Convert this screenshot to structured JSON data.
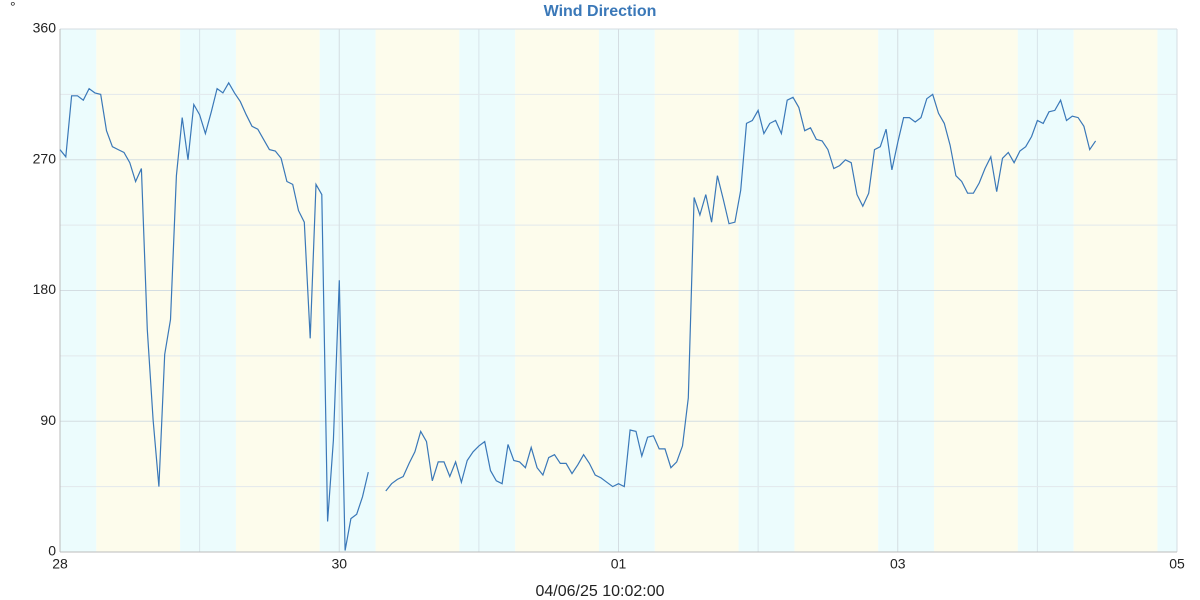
{
  "chart_data": {
    "type": "line",
    "title": "Wind Direction",
    "ylabel": "°",
    "xlabel": "04/06/25 10:02:00",
    "xlim": [
      0,
      192
    ],
    "xticks": [
      {
        "value": 0,
        "label": "28"
      },
      {
        "value": 48,
        "label": "30"
      },
      {
        "value": 96,
        "label": "01"
      },
      {
        "value": 144,
        "label": "03"
      },
      {
        "value": 192,
        "label": "05"
      }
    ],
    "ylim": [
      0,
      360
    ],
    "yticks": [
      0,
      90,
      180,
      270,
      360
    ],
    "grid": true,
    "x": [
      0,
      1,
      2,
      3,
      4,
      5,
      6,
      7,
      8,
      9,
      10,
      11,
      12,
      13,
      14,
      15,
      16,
      17,
      18,
      19,
      20,
      21,
      22,
      23,
      24,
      25,
      26,
      27,
      28,
      29,
      30,
      31,
      32,
      33,
      34,
      35,
      36,
      37,
      38,
      39,
      40,
      41,
      42,
      43,
      44,
      45,
      46,
      47,
      48,
      49,
      50,
      51,
      52,
      53,
      54,
      55,
      56,
      57,
      58,
      59,
      60,
      61,
      62,
      63,
      64,
      65,
      66,
      67,
      68,
      69,
      70,
      71,
      72,
      73,
      74,
      75,
      76,
      77,
      78,
      79,
      80,
      81,
      82,
      83,
      84,
      85,
      86,
      87,
      88,
      89,
      90,
      91,
      92,
      93,
      94,
      95,
      96,
      97,
      98,
      99,
      100,
      101,
      102,
      103,
      104,
      105,
      106,
      107,
      108,
      109,
      110,
      111,
      112,
      113,
      114,
      115,
      116,
      117,
      118,
      119,
      120,
      121,
      122,
      123,
      124,
      125,
      126,
      127,
      128,
      129,
      130,
      131,
      132,
      133,
      134,
      135,
      136,
      137,
      138,
      139,
      140,
      141,
      142,
      143,
      144,
      145,
      146,
      147,
      148,
      149,
      150,
      151,
      152,
      153,
      154,
      155,
      156,
      157,
      158,
      159,
      160,
      161,
      162,
      163,
      164,
      165,
      166,
      167,
      168,
      169,
      170,
      171,
      172,
      173,
      174,
      175,
      176,
      177,
      178
    ],
    "series": [
      {
        "name": "Wind Direction",
        "color": "#3a78b8",
        "values": [
          277,
          272,
          314,
          314,
          311,
          319,
          316,
          315,
          290,
          279,
          277,
          275,
          268,
          255,
          264,
          153,
          91,
          45,
          136,
          160,
          259,
          299,
          270,
          308,
          301,
          288,
          303,
          319,
          316,
          323,
          316,
          310,
          301,
          293,
          291,
          284,
          277,
          276,
          271,
          255,
          253,
          235,
          227,
          147,
          253,
          246,
          21,
          77,
          187,
          1,
          23,
          26,
          38,
          55,
          null,
          null,
          42,
          47,
          50,
          52,
          61,
          69,
          83,
          76,
          49,
          62,
          62,
          52,
          62,
          48,
          63,
          69,
          73,
          76,
          56,
          49,
          47,
          74,
          63,
          62,
          58,
          72,
          58,
          53,
          65,
          67,
          61,
          61,
          54,
          60,
          67,
          61,
          53,
          51,
          48,
          45,
          47,
          45,
          84,
          83,
          66,
          79,
          80,
          71,
          71,
          58,
          62,
          73,
          106,
          244,
          232,
          246,
          227,
          259,
          243,
          226,
          227,
          249,
          295,
          297,
          304,
          288,
          295,
          297,
          288,
          311,
          313,
          306,
          290,
          292,
          284,
          283,
          277,
          264,
          266,
          270,
          268,
          246,
          238,
          247,
          277,
          279,
          291,
          263,
          282,
          299,
          299,
          296,
          299,
          312,
          315,
          302,
          295,
          280,
          259,
          255,
          247,
          247,
          254,
          264,
          272,
          248,
          271,
          275,
          268,
          276,
          279,
          286,
          297,
          295,
          303,
          304,
          311,
          297,
          300,
          299,
          293,
          277,
          283
        ]
      }
    ]
  }
}
